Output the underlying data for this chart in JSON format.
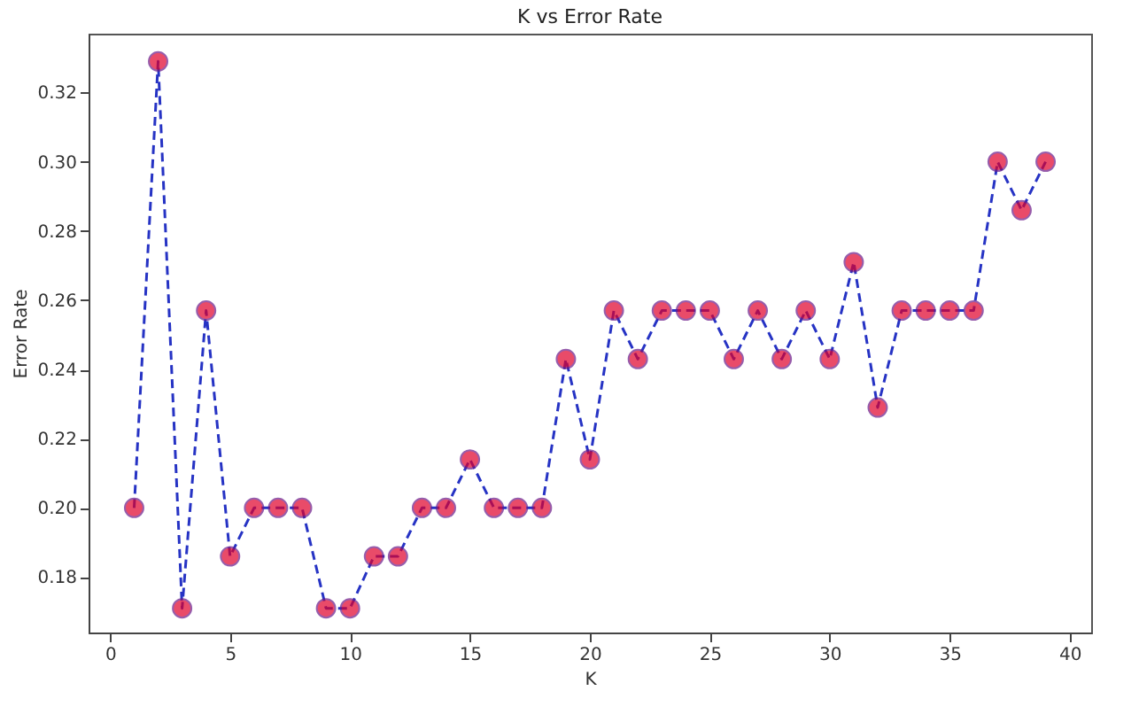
{
  "chart_data": {
    "type": "line",
    "title": "K vs Error Rate",
    "xlabel": "K",
    "ylabel": "Error Rate",
    "x": [
      1,
      2,
      3,
      4,
      5,
      6,
      7,
      8,
      9,
      10,
      11,
      12,
      13,
      14,
      15,
      16,
      17,
      18,
      19,
      20,
      21,
      22,
      23,
      24,
      25,
      26,
      27,
      28,
      29,
      30,
      31,
      32,
      33,
      34,
      35,
      36,
      37,
      38,
      39
    ],
    "series": [
      {
        "color": "#2633c4",
        "colors": [
          "#e0002a",
          "#e0002a",
          "#e0002a",
          "#e0002a",
          "#e0002a",
          "#e0002a",
          "#e0002a",
          "#e0002a",
          "#e0002a",
          "#e0002a",
          "#e0002a",
          "#e0002a",
          "#e0002a",
          "#e0002a",
          "#e0002a",
          "#e0002a",
          "#e0002a",
          "#e0002a",
          "#e0002a",
          "#e0002a",
          "#e0002a",
          "#e0002a",
          "#e0002a",
          "#e0002a",
          "#e0002a",
          "#e0002a",
          "#e0002a",
          "#e0002a",
          "#e0002a",
          "#e0002a",
          "#e0002a",
          "#e0002a",
          "#e0002a",
          "#e0002a",
          "#e0002a",
          "#e0002a",
          "#e0002a",
          "#e0002a",
          "#e0002a"
        ],
        "values": [
          0.2,
          0.329,
          0.171,
          0.257,
          0.186,
          0.2,
          0.2,
          0.2,
          0.171,
          0.171,
          0.186,
          0.186,
          0.2,
          0.2,
          0.214,
          0.2,
          0.2,
          0.2,
          0.243,
          0.214,
          0.257,
          0.243,
          0.257,
          0.257,
          0.257,
          0.243,
          0.257,
          0.243,
          0.257,
          0.243,
          0.271,
          0.229,
          0.257,
          0.257,
          0.257,
          0.257,
          0.3,
          0.286,
          0.3
        ]
      }
    ],
    "xlim": [
      -0.9,
      40.9
    ],
    "ylim": [
      0.164,
      0.337
    ],
    "xticks": [
      0,
      5,
      10,
      15,
      20,
      25,
      30,
      35,
      40
    ],
    "yticks": [
      0.18,
      {
        "value": 0.2,
        "label": "0.20"
      },
      0.22,
      0.24,
      0.26,
      0.28,
      {
        "value": 0.3,
        "label": "0.30"
      },
      0.32
    ],
    "grid": false,
    "marker": "circle",
    "line_style": "dashed"
  }
}
